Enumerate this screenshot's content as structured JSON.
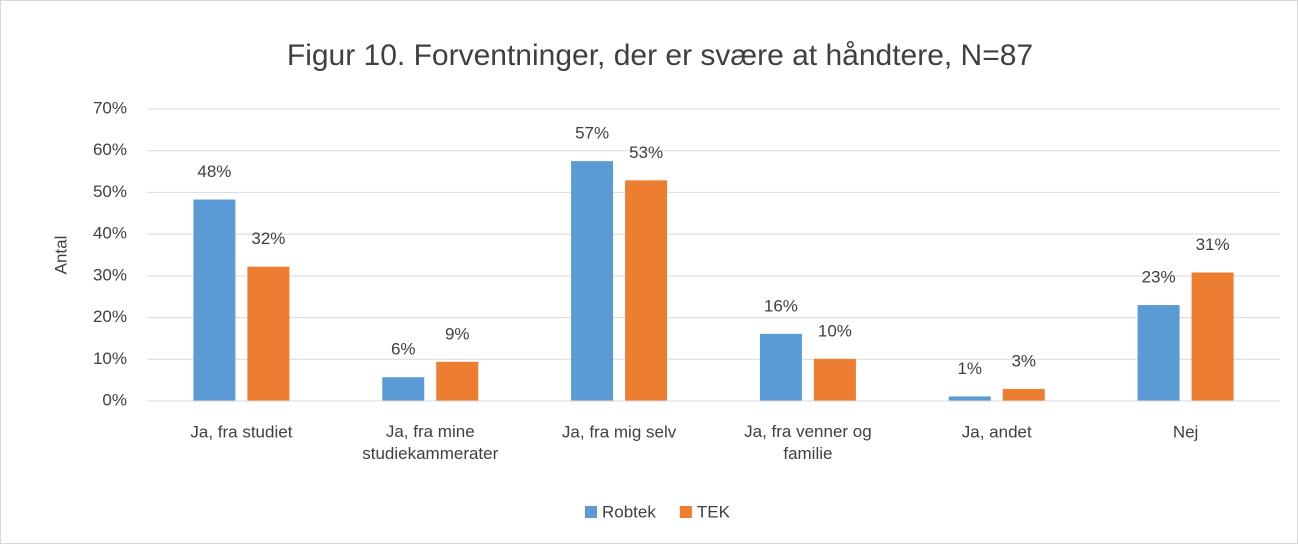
{
  "chart_data": {
    "type": "bar",
    "title": "Figur 10. Forventninger, der er svære at håndtere, N=87",
    "y_label": "Antal",
    "categories": [
      "Ja, fra studiet",
      "Ja, fra mine\nstudiekammerater",
      "Ja, fra mig selv",
      "Ja, fra venner og\nfamilie",
      "Ja, andet",
      "Nej"
    ],
    "series": [
      {
        "name": "Robtek",
        "color": "#5b9bd5",
        "values": [
          48.3,
          5.7,
          57.5,
          16.1,
          1.1,
          23.0
        ],
        "value_labels": [
          "48%",
          "6%",
          "57%",
          "16%",
          "1%",
          "23%"
        ]
      },
      {
        "name": "TEK",
        "color": "#ed7d31",
        "values": [
          32.2,
          9.4,
          52.9,
          10.1,
          2.9,
          30.8
        ],
        "value_labels": [
          "32%",
          "9%",
          "53%",
          "10%",
          "3%",
          "31%"
        ]
      }
    ],
    "ylim": [
      0,
      70
    ],
    "yticks": [
      {
        "value": 0,
        "label": "0%"
      },
      {
        "value": 10,
        "label": "10%"
      },
      {
        "value": 20,
        "label": "20%"
      },
      {
        "value": 30,
        "label": "30%"
      },
      {
        "value": 40,
        "label": "40%"
      },
      {
        "value": 50,
        "label": "50%"
      },
      {
        "value": 60,
        "label": "60%"
      },
      {
        "value": 70,
        "label": "70%"
      }
    ],
    "grid": true,
    "legend": "bottom"
  }
}
